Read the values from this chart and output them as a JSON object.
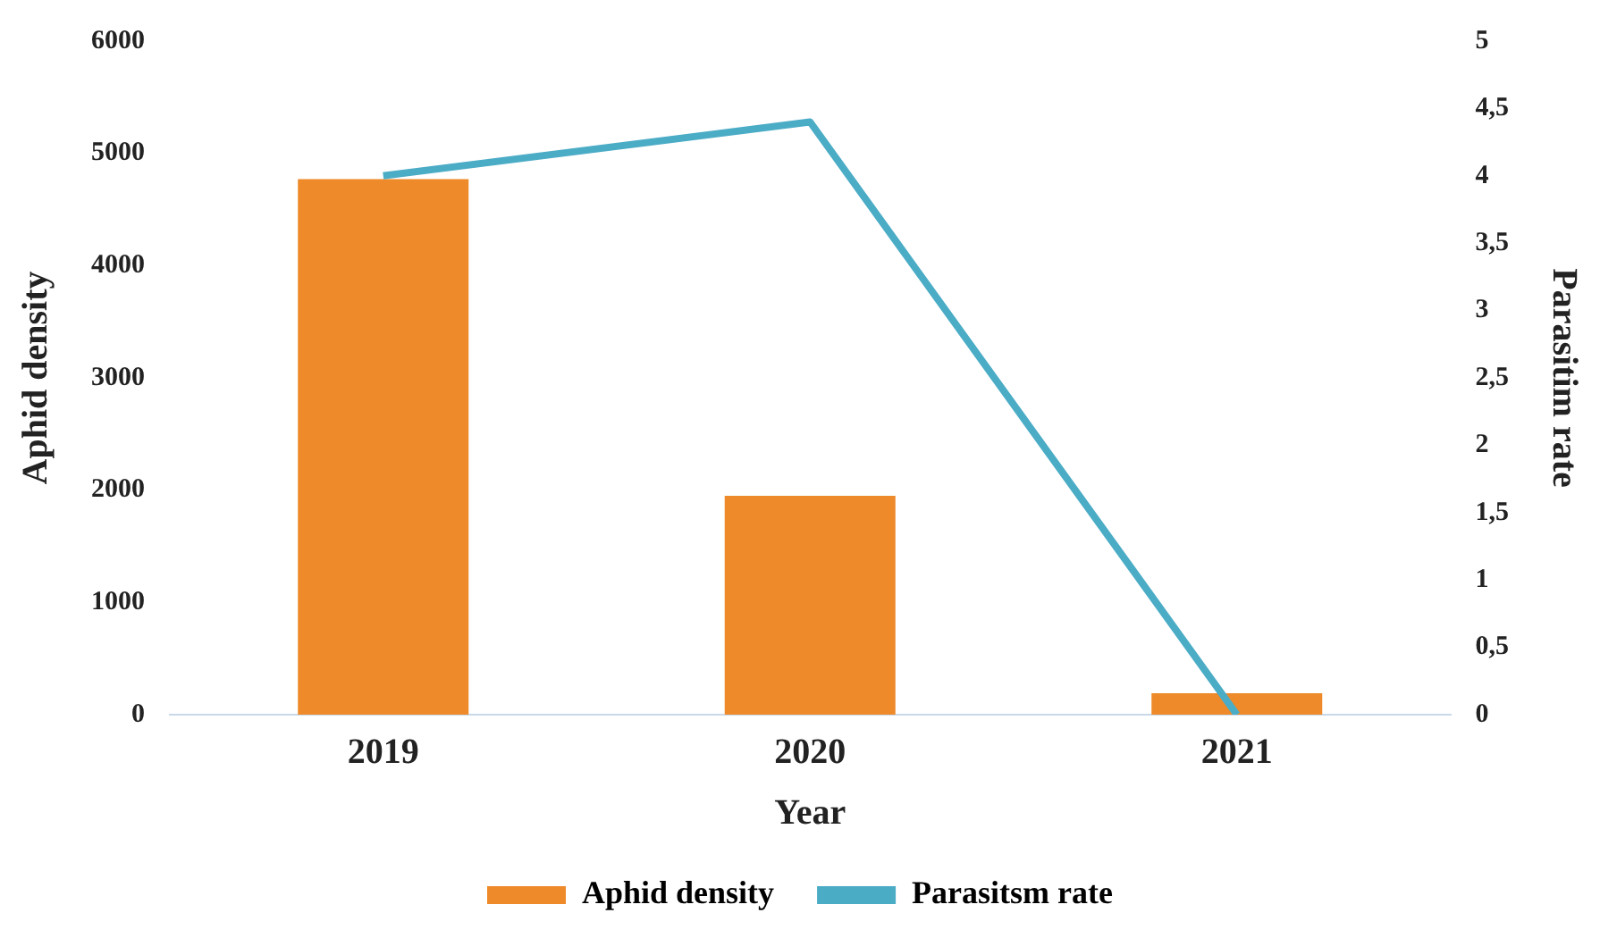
{
  "chart_data": {
    "type": "bar",
    "xlabel": "Year",
    "ylabel": "Aphid density",
    "y2label": "Parasitim rate",
    "categories": [
      "2019",
      "2020",
      "2021"
    ],
    "series": [
      {
        "name": "Aphid density",
        "color": "#ee8a2a",
        "values": [
          4770,
          1950,
          190
        ]
      },
      {
        "name": "Parasitsm rate",
        "type": "line",
        "axis": "y2",
        "color": "#4bacc6",
        "values": [
          4,
          4.4,
          0
        ]
      }
    ],
    "ylim": [
      0,
      6000
    ],
    "yticks": [
      0,
      1000,
      2000,
      3000,
      4000,
      5000,
      6000
    ],
    "y2lim": [
      0,
      5
    ],
    "y2ticks": [
      0,
      {
        "value": 0.5,
        "label": "0,5"
      },
      1,
      {
        "value": 1.5,
        "label": "1,5"
      },
      2,
      {
        "value": 2.5,
        "label": "2,5"
      },
      3,
      {
        "value": 3.5,
        "label": "3,5"
      },
      4,
      {
        "value": 4.5,
        "label": "4,5"
      },
      5
    ],
    "grid": false,
    "legend": "bottom",
    "marker": "none",
    "line_style": "solid"
  }
}
